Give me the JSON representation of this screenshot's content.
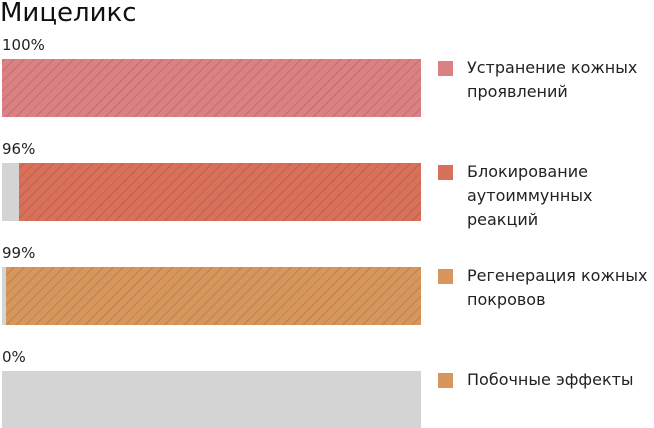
{
  "chart_data": {
    "type": "bar",
    "orientation": "horizontal",
    "title": "Мицеликс",
    "categories": [
      "Устранение кожных проявлений",
      "Блокирование аутоиммунных реакций",
      "Регенерация кожных покровов",
      "Побочные эффекты"
    ],
    "values": [
      100,
      96,
      99,
      0
    ],
    "value_labels": [
      "100%",
      "96%",
      "99%",
      "0%"
    ],
    "colors": [
      "#db8083",
      "#d9705a",
      "#d6965c",
      "#d6965c"
    ],
    "track_color": "#d4d4d4",
    "xlim": [
      0,
      100
    ]
  }
}
